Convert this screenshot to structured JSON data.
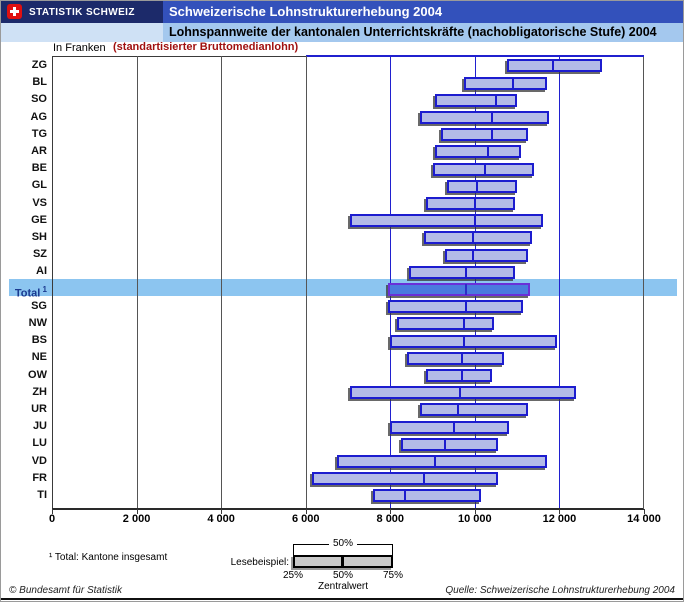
{
  "header": {
    "brand": "STATISTIK SCHWEIZ",
    "title": "Schweizerische Lohnstrukturerhebung 2004",
    "subtitle": "Lohnspannweite der kantonalen Unterrichtskräfte (nachobligatorische Stufe) 2004"
  },
  "axis_note": {
    "unit": "In Franken",
    "note": "(standartisierter Bruttomedianlohn)"
  },
  "footnote": "¹ Total: Kantone insgesamt",
  "legend": {
    "label": "Lesebeispiel:",
    "bracket_label": "50%",
    "p25": "25%",
    "p50": "50%",
    "p75": "75%",
    "caption": "Zentralwert"
  },
  "footer": {
    "copyright": "© Bundesamt für Statistik",
    "source": "Quelle: Schweizerische Lohnstrukturerhebung 2004"
  },
  "colors": {
    "brand_bg": "#1c2a6a",
    "title_bg": "#3351bb",
    "subtitle_bg": "#a4c8ee",
    "note_red": "#a01010",
    "box_fill": "#b4bbe7",
    "box_border": "#1c1ccf",
    "total_box_fill": "#4a7ade",
    "total_box_border": "#6a2fd8",
    "highlight_band": "#8cc5f0",
    "grid_gray": "#555555",
    "grid_blue": "#2020cf"
  },
  "chart_data": {
    "type": "box-range-horizontal",
    "title": "Lohnspannweite der kantonalen Unterrichtskräfte (nachobligatorische Stufe) 2004",
    "xlabel": "In Franken (standartisierter Bruttomedianlohn)",
    "xlim": [
      0,
      14000
    ],
    "x_ticks": [
      0,
      2000,
      4000,
      6000,
      8000,
      10000,
      12000,
      14000
    ],
    "x_tick_labels": [
      "0",
      "2 000",
      "4 000",
      "6 000",
      "8 000",
      "10 000",
      "12 000",
      "14 000"
    ],
    "gray_gridlines": [
      2000,
      4000,
      6000
    ],
    "blue_gridlines": [
      8000,
      10000,
      12000
    ],
    "quantile_semantics": [
      "25%",
      "50% (Zentralwert)",
      "75%"
    ],
    "rows": [
      {
        "label": "ZG",
        "q25": 10750,
        "q50": 11850,
        "q75": 13000
      },
      {
        "label": "BL",
        "q25": 9750,
        "q50": 10900,
        "q75": 11700
      },
      {
        "label": "SO",
        "q25": 9050,
        "q50": 10500,
        "q75": 11000
      },
      {
        "label": "AG",
        "q25": 8700,
        "q50": 10400,
        "q75": 11750
      },
      {
        "label": "TG",
        "q25": 9200,
        "q50": 10400,
        "q75": 11250
      },
      {
        "label": "AR",
        "q25": 9050,
        "q50": 10300,
        "q75": 11100
      },
      {
        "label": "BE",
        "q25": 9000,
        "q50": 10250,
        "q75": 11400
      },
      {
        "label": "GL",
        "q25": 9350,
        "q50": 10050,
        "q75": 11000
      },
      {
        "label": "VS",
        "q25": 8850,
        "q50": 10000,
        "q75": 10950
      },
      {
        "label": "GE",
        "q25": 7050,
        "q50": 10000,
        "q75": 11600
      },
      {
        "label": "SH",
        "q25": 8800,
        "q50": 9950,
        "q75": 11350
      },
      {
        "label": "SZ",
        "q25": 9300,
        "q50": 9950,
        "q75": 11250
      },
      {
        "label": "AI",
        "q25": 8450,
        "q50": 9800,
        "q75": 10950
      },
      {
        "label": "Total",
        "sup": "1",
        "highlight": true,
        "q25": 7950,
        "q50": 9800,
        "q75": 11300
      },
      {
        "label": "SG",
        "q25": 7950,
        "q50": 9800,
        "q75": 11150
      },
      {
        "label": "NW",
        "q25": 8150,
        "q50": 9750,
        "q75": 10450
      },
      {
        "label": "BS",
        "q25": 8000,
        "q50": 9750,
        "q75": 11950
      },
      {
        "label": "NE",
        "q25": 8400,
        "q50": 9700,
        "q75": 10700
      },
      {
        "label": "OW",
        "q25": 8850,
        "q50": 9700,
        "q75": 10400
      },
      {
        "label": "ZH",
        "q25": 7050,
        "q50": 9650,
        "q75": 12400
      },
      {
        "label": "UR",
        "q25": 8700,
        "q50": 9600,
        "q75": 11250
      },
      {
        "label": "JU",
        "q25": 8000,
        "q50": 9500,
        "q75": 10800
      },
      {
        "label": "LU",
        "q25": 8250,
        "q50": 9300,
        "q75": 10550
      },
      {
        "label": "VD",
        "q25": 6750,
        "q50": 9050,
        "q75": 11700
      },
      {
        "label": "FR",
        "q25": 6150,
        "q50": 8800,
        "q75": 10550
      },
      {
        "label": "TI",
        "q25": 7600,
        "q50": 8350,
        "q75": 10150
      }
    ]
  }
}
